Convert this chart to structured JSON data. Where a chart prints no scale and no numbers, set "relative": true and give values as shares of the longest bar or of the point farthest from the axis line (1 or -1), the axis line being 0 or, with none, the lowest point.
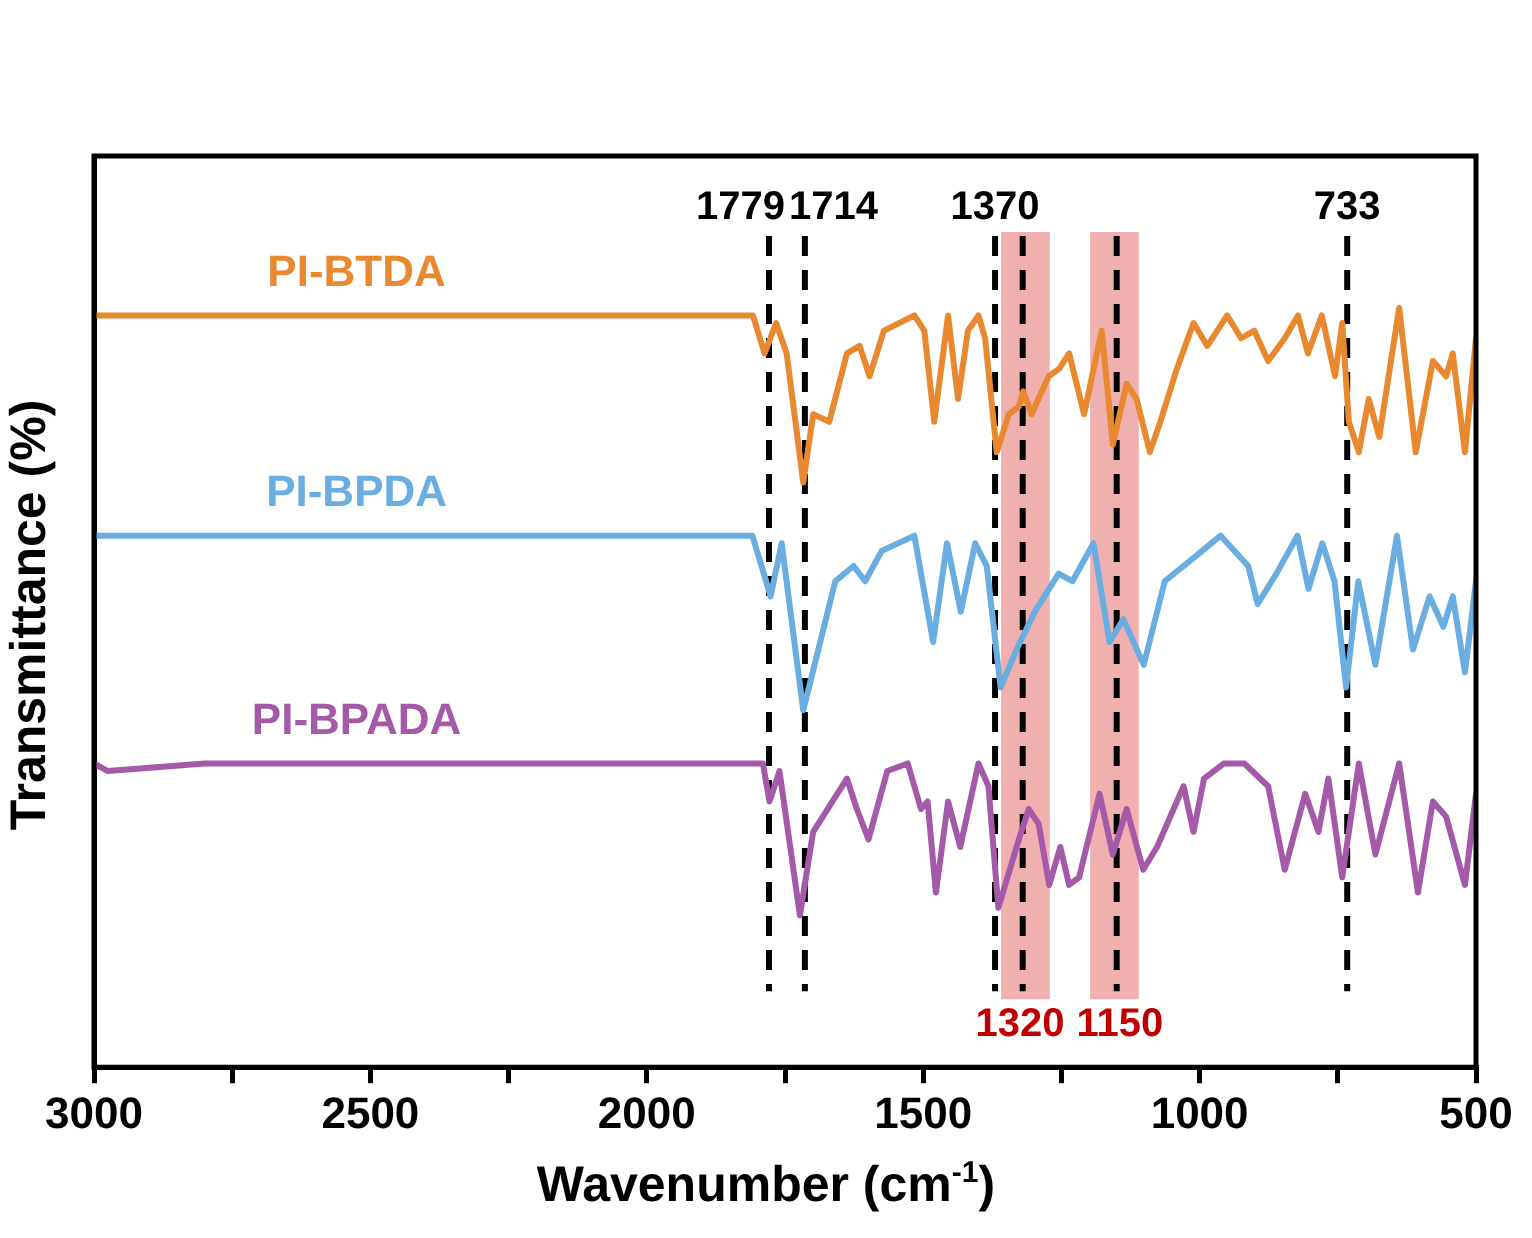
{
  "chart_data": {
    "type": "line",
    "relative": true,
    "xlabel": "Wavenumber (cm$^{-1}$)",
    "ylabel": "Transmittance (%)",
    "xlim": [
      3000,
      500
    ],
    "xticks": [
      3000,
      {
        "value": 2750,
        "label": null
      },
      2500,
      {
        "value": 2250,
        "label": null
      },
      2000,
      {
        "value": 1750,
        "label": null
      },
      1500,
      {
        "value": 1250,
        "label": null
      },
      1000,
      {
        "value": 750,
        "label": null
      },
      500
    ],
    "tick_labels": "x",
    "grid": false,
    "legend": false,
    "line_style": "solid",
    "series": [
      {
        "name": "PI-BTDA",
        "color": "#e8892f",
        "x": [
          3000,
          2800,
          2500,
          2200,
          1900,
          1808,
          1787,
          1766,
          1747,
          1717,
          1699,
          1670,
          1638,
          1615,
          1597,
          1571,
          1516,
          1498,
          1480,
          1455,
          1437,
          1419,
          1400,
          1388,
          1367,
          1345,
          1327,
          1319,
          1304,
          1273,
          1254,
          1236,
          1209,
          1177,
          1157,
          1132,
          1114,
          1090,
          1071,
          1041,
          1011,
          986,
          950,
          925,
          901,
          876,
          846,
          822,
          804,
          779,
          755,
          742,
          730,
          712,
          694,
          675,
          639,
          609,
          578,
          554,
          542,
          520,
          500
        ],
        "values": [
          0.99,
          0.99,
          0.99,
          0.99,
          0.99,
          0.99,
          0.94,
          0.98,
          0.94,
          0.77,
          0.86,
          0.85,
          0.94,
          0.95,
          0.91,
          0.97,
          0.99,
          0.97,
          0.85,
          0.99,
          0.88,
          0.97,
          0.99,
          0.96,
          0.81,
          0.86,
          0.87,
          0.89,
          0.86,
          0.91,
          0.92,
          0.94,
          0.86,
          0.97,
          0.82,
          0.9,
          0.88,
          0.81,
          0.85,
          0.92,
          0.98,
          0.95,
          0.99,
          0.96,
          0.97,
          0.93,
          0.96,
          0.99,
          0.94,
          0.99,
          0.91,
          0.98,
          0.85,
          0.81,
          0.88,
          0.83,
          1.0,
          0.81,
          0.93,
          0.91,
          0.94,
          0.81,
          0.96
        ]
      },
      {
        "name": "PI-BPDA",
        "color": "#6aade0",
        "x": [
          3000,
          2800,
          2500,
          2200,
          1900,
          1809,
          1776,
          1756,
          1717,
          1659,
          1626,
          1605,
          1575,
          1516,
          1482,
          1457,
          1432,
          1406,
          1385,
          1360,
          1331,
          1298,
          1255,
          1230,
          1192,
          1163,
          1138,
          1101,
          1063,
          1012,
          962,
          912,
          895,
          861,
          823,
          803,
          778,
          756,
          735,
          713,
          682,
          643,
          614,
          584,
          559,
          542,
          520,
          500
        ],
        "values": [
          0.7,
          0.7,
          0.7,
          0.7,
          0.7,
          0.7,
          0.62,
          0.69,
          0.47,
          0.64,
          0.66,
          0.64,
          0.68,
          0.7,
          0.56,
          0.69,
          0.6,
          0.69,
          0.66,
          0.5,
          0.55,
          0.6,
          0.65,
          0.64,
          0.69,
          0.56,
          0.59,
          0.53,
          0.64,
          0.67,
          0.7,
          0.66,
          0.61,
          0.65,
          0.7,
          0.63,
          0.69,
          0.64,
          0.5,
          0.64,
          0.53,
          0.7,
          0.55,
          0.62,
          0.58,
          0.62,
          0.52,
          0.64
        ]
      },
      {
        "name": "PI-BPADA",
        "color": "#a45aa8",
        "x": [
          3000,
          2975,
          2800,
          2500,
          2200,
          1900,
          1790,
          1778,
          1760,
          1723,
          1699,
          1638,
          1620,
          1599,
          1565,
          1528,
          1504,
          1492,
          1477,
          1455,
          1433,
          1400,
          1382,
          1364,
          1327,
          1309,
          1291,
          1272,
          1252,
          1236,
          1218,
          1181,
          1157,
          1132,
          1102,
          1077,
          1029,
          1011,
          992,
          956,
          919,
          876,
          846,
          809,
          785,
          767,
          742,
          712,
          682,
          639,
          605,
          578,
          554,
          520,
          500
        ],
        "values": [
          0.4,
          0.39,
          0.4,
          0.4,
          0.4,
          0.4,
          0.4,
          0.35,
          0.39,
          0.2,
          0.31,
          0.38,
          0.34,
          0.3,
          0.39,
          0.4,
          0.34,
          0.35,
          0.23,
          0.35,
          0.29,
          0.4,
          0.37,
          0.21,
          0.3,
          0.34,
          0.32,
          0.24,
          0.29,
          0.24,
          0.25,
          0.36,
          0.28,
          0.34,
          0.26,
          0.29,
          0.37,
          0.31,
          0.38,
          0.4,
          0.4,
          0.37,
          0.26,
          0.36,
          0.31,
          0.38,
          0.25,
          0.4,
          0.28,
          0.4,
          0.23,
          0.35,
          0.33,
          0.24,
          0.36
        ]
      }
    ],
    "ref_lines": [
      {
        "axis": "x",
        "value": 1779,
        "label": "1779",
        "line_style": "dashed",
        "color": "#000000"
      },
      {
        "axis": "x",
        "value": 1714,
        "label": "1714",
        "line_style": "dashed",
        "color": "#000000"
      },
      {
        "axis": "x",
        "value": 1370,
        "label": "1370",
        "line_style": "dashed",
        "color": "#000000"
      },
      {
        "axis": "x",
        "value": 1320,
        "line_style": "dashed",
        "color": "#000000"
      },
      {
        "axis": "x",
        "value": 1150,
        "line_style": "dashed",
        "color": "#000000"
      },
      {
        "axis": "x",
        "value": 733,
        "label": "733",
        "line_style": "dashed",
        "color": "#000000"
      }
    ],
    "bands": [
      {
        "axis": "x",
        "from": 1359,
        "to": 1271,
        "label": "1320",
        "color": "#f0b0b0"
      },
      {
        "axis": "x",
        "from": 1198,
        "to": 1110,
        "label": "1150",
        "color": "#f0b0b0"
      }
    ]
  }
}
